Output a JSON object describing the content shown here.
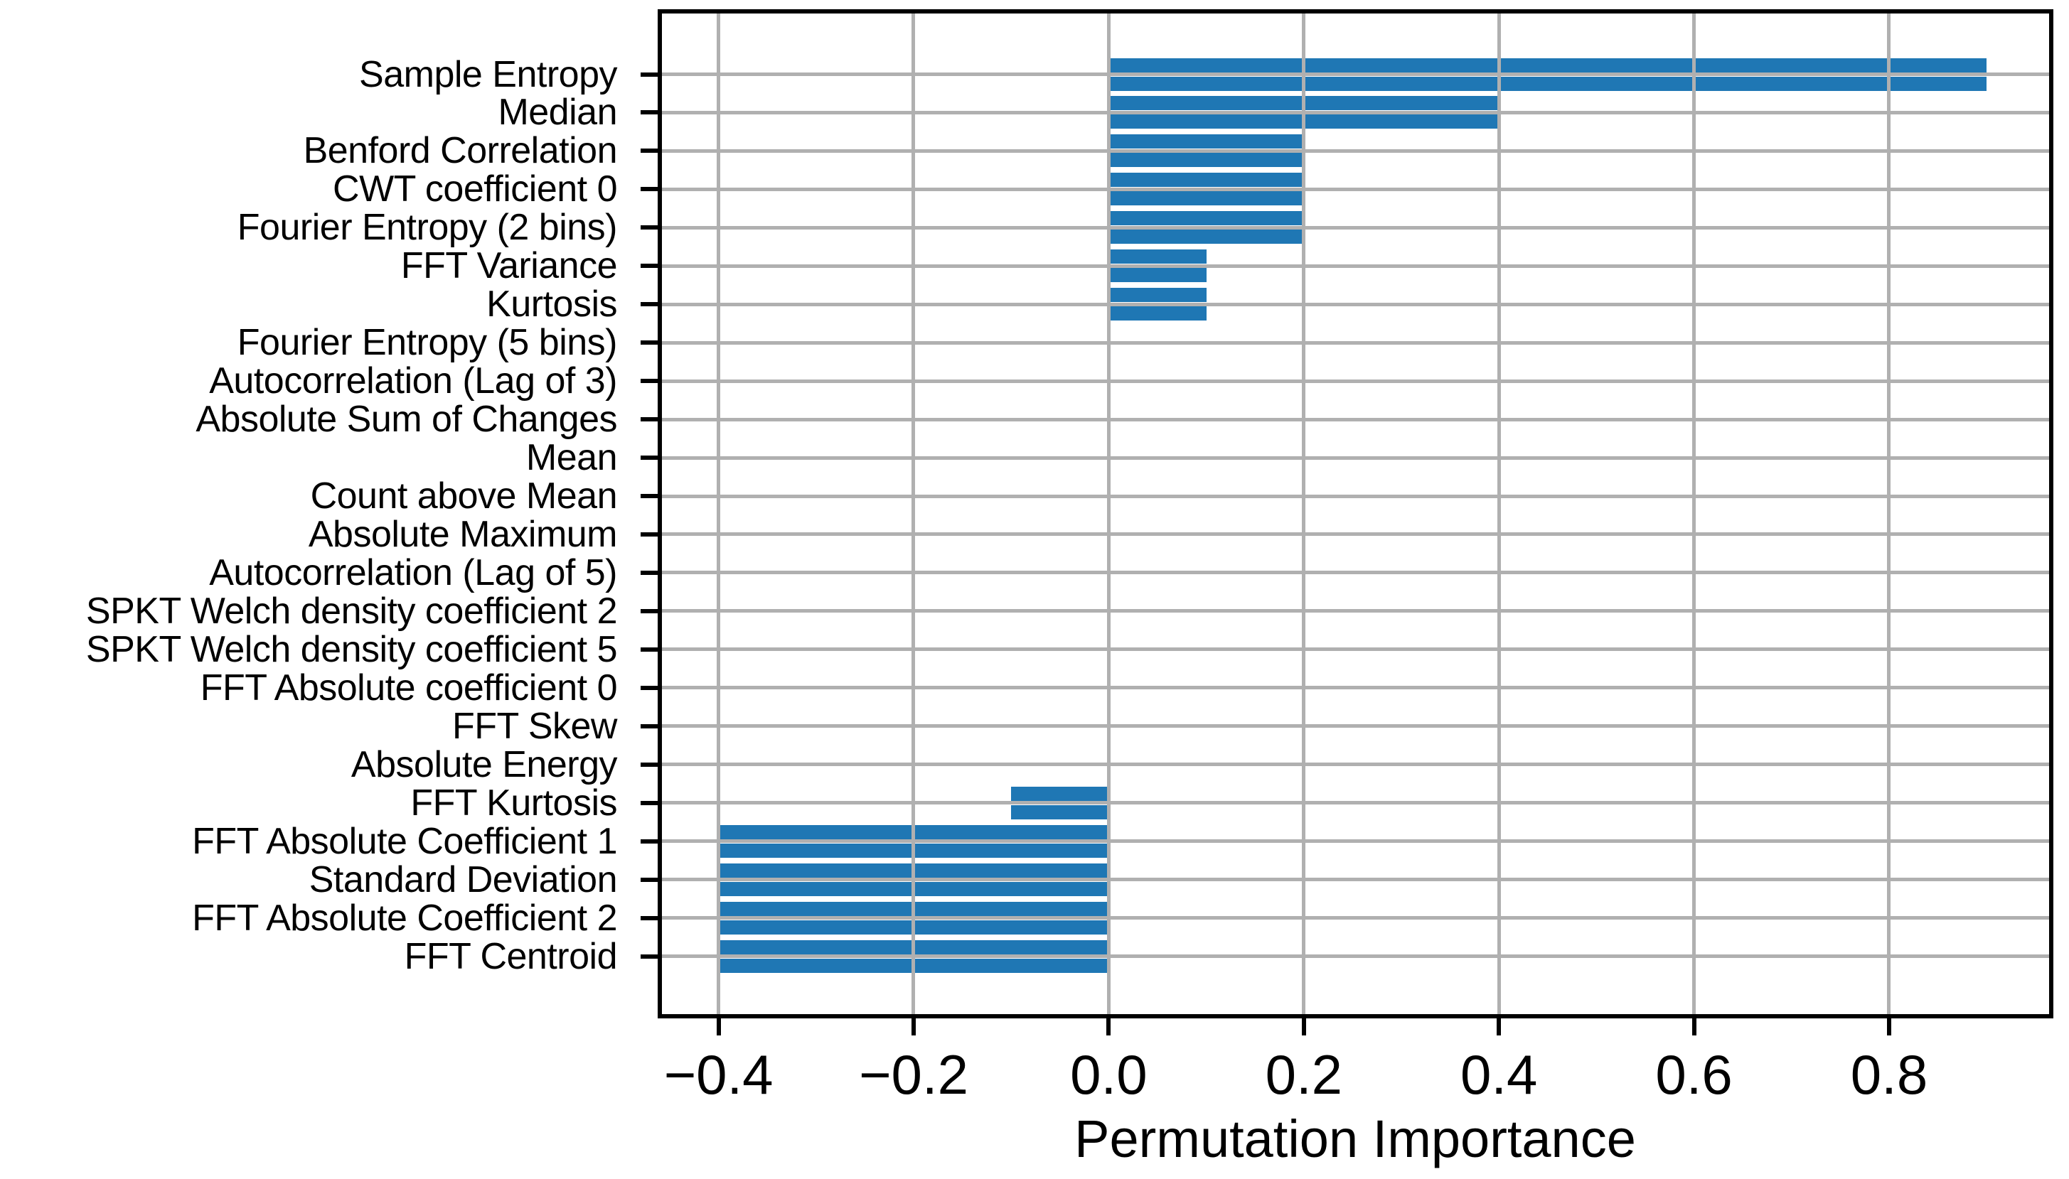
{
  "chart_data": {
    "type": "bar",
    "orientation": "horizontal",
    "title": "",
    "xlabel": "Permutation Importance",
    "ylabel": "",
    "categories": [
      "Sample Entropy",
      "Median",
      "Benford Correlation",
      "CWT coefficient 0",
      "Fourier Entropy (2 bins)",
      "FFT Variance",
      "Kurtosis",
      "Fourier Entropy (5 bins)",
      "Autocorrelation (Lag of 3)",
      "Absolute Sum of Changes",
      "Mean",
      "Count above Mean",
      "Absolute Maximum",
      "Autocorrelation (Lag of 5)",
      "SPKT Welch density coefficient 2",
      "SPKT Welch density coefficient 5",
      "FFT Absolute coefficient 0",
      "FFT Skew",
      "Absolute Energy",
      "FFT Kurtosis",
      "FFT Absolute Coefficient 1",
      "Standard Deviation",
      "FFT Absolute Coefficient 2",
      "FFT Centroid"
    ],
    "values": [
      0.9,
      0.4,
      0.2,
      0.2,
      0.2,
      0.1,
      0.1,
      0.0,
      0.0,
      0.0,
      0.0,
      0.0,
      0.0,
      0.0,
      0.0,
      0.0,
      0.0,
      0.0,
      0.0,
      -0.1,
      -0.4,
      -0.4,
      -0.4,
      -0.4
    ],
    "bars_per_category": 2,
    "xlim": [
      -0.458,
      0.964
    ],
    "x_tick_values": [
      -0.4,
      -0.2,
      0.0,
      0.2,
      0.4,
      0.6,
      0.8
    ],
    "x_tick_labels": [
      "−0.4",
      "−0.2",
      "0.0",
      "0.2",
      "0.4",
      "0.6",
      "0.8"
    ],
    "grid": true,
    "legend": null,
    "colors": {
      "bar": "#1f77b4",
      "grid": "#b0b0b0",
      "spine": "#000000",
      "text": "#000000",
      "background": "#ffffff"
    }
  }
}
